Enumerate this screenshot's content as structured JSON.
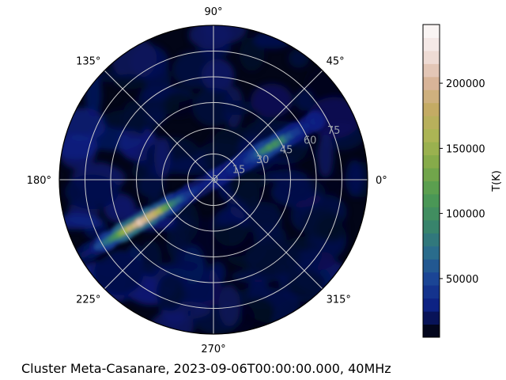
{
  "chart_data": {
    "type": "heatmap",
    "projection": "polar",
    "title": "Cluster Meta-Casanare, 2023-09-06T00:00:00.000, 40MHz",
    "angular_ticks": [
      "0°",
      "45°",
      "90°",
      "135°",
      "180°",
      "225°",
      "270°",
      "315°"
    ],
    "angular_tick_values": [
      0,
      45,
      90,
      135,
      180,
      225,
      270,
      315
    ],
    "radial_ticks": [
      "0",
      "15",
      "30",
      "45",
      "60",
      "75"
    ],
    "radial_tick_values": [
      0,
      15,
      30,
      45,
      60,
      75
    ],
    "radial_range": [
      0,
      90
    ],
    "radial_label_angle_deg": 22.5,
    "colorbar": {
      "label": "T(K)",
      "colormap": "gist_earth",
      "ticks": [
        "50000",
        "100000",
        "150000",
        "200000"
      ],
      "tick_values": [
        50000,
        100000,
        150000,
        200000
      ],
      "range": [
        5000,
        245000
      ]
    },
    "features": {
      "background_level_K": 9000,
      "galactic_plane": {
        "description": "bright band from ~205° to ~30°",
        "peak_K": 170000,
        "peak_position": {
          "theta_deg": 203,
          "r": 48
        }
      }
    },
    "grid": true
  },
  "colors": {
    "gist_earth_stops": [
      "#000000",
      "#0b1c80",
      "#1a4296",
      "#2a6d8c",
      "#3a8768",
      "#4e9b52",
      "#7ea948",
      "#a9b653",
      "#c4ab63",
      "#d9b59c",
      "#f2e1de",
      "#fdfbfb"
    ]
  }
}
